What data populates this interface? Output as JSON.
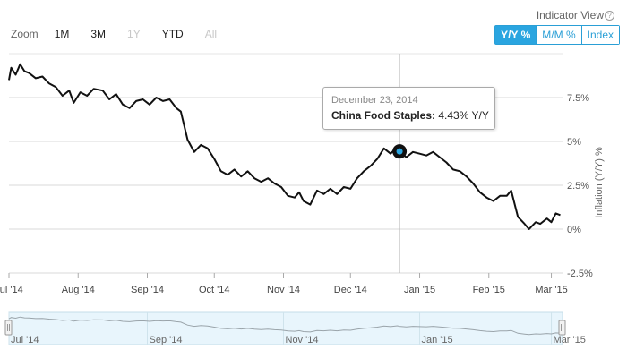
{
  "zoom": {
    "label": "Zoom",
    "buttons": [
      {
        "label": "1M",
        "enabled": true
      },
      {
        "label": "3M",
        "enabled": true
      },
      {
        "label": "1Y",
        "enabled": false
      },
      {
        "label": "YTD",
        "enabled": true
      },
      {
        "label": "All",
        "enabled": false
      }
    ]
  },
  "indicator": {
    "title": "Indicator View",
    "help_icon": "help-circle-icon",
    "buttons": [
      {
        "label": "Y/Y %",
        "active": true
      },
      {
        "label": "M/M %",
        "active": false
      },
      {
        "label": "Index",
        "active": false
      }
    ]
  },
  "tooltip": {
    "date": "December 23, 2014",
    "series": "China Food Staples:",
    "value": "4.43% Y/Y"
  },
  "colors": {
    "line": "#111111",
    "accent": "#2aa5e0",
    "navigator_fill": "#e6f4fb",
    "grid": "#d8d8d8"
  },
  "chart_data": {
    "type": "line",
    "title": "",
    "ylabel": "Inflation (Y/Y) %",
    "xlabel": "",
    "ylim": [
      -2.5,
      10
    ],
    "yticks": [
      {
        "value": 7.5,
        "label": "7.5%"
      },
      {
        "value": 5,
        "label": "5%"
      },
      {
        "value": 2.5,
        "label": "2.5%"
      },
      {
        "value": 0,
        "label": "0%"
      },
      {
        "value": -2.5,
        "label": "-2.5%"
      }
    ],
    "xlim": [
      "2014-07-01",
      "2015-03-06"
    ],
    "xticks": [
      {
        "date": "2014-07-01",
        "label": "Jul '14"
      },
      {
        "date": "2014-08-01",
        "label": "Aug '14"
      },
      {
        "date": "2014-09-01",
        "label": "Sep '14"
      },
      {
        "date": "2014-10-01",
        "label": "Oct '14"
      },
      {
        "date": "2014-11-01",
        "label": "Nov '14"
      },
      {
        "date": "2014-12-01",
        "label": "Dec '14"
      },
      {
        "date": "2015-01-01",
        "label": "Jan '15"
      },
      {
        "date": "2015-02-01",
        "label": "Feb '15"
      },
      {
        "date": "2015-03-01",
        "label": "Mar '15"
      }
    ],
    "grid": true,
    "series": [
      {
        "name": "China Food Staples",
        "points": [
          [
            "2014-07-01",
            8.5
          ],
          [
            "2014-07-02",
            9.2
          ],
          [
            "2014-07-04",
            8.8
          ],
          [
            "2014-07-06",
            9.4
          ],
          [
            "2014-07-08",
            9.0
          ],
          [
            "2014-07-10",
            8.9
          ],
          [
            "2014-07-13",
            8.6
          ],
          [
            "2014-07-16",
            8.7
          ],
          [
            "2014-07-19",
            8.3
          ],
          [
            "2014-07-22",
            8.1
          ],
          [
            "2014-07-25",
            7.6
          ],
          [
            "2014-07-28",
            7.9
          ],
          [
            "2014-07-30",
            7.2
          ],
          [
            "2014-08-02",
            7.8
          ],
          [
            "2014-08-05",
            7.6
          ],
          [
            "2014-08-08",
            8.0
          ],
          [
            "2014-08-12",
            7.9
          ],
          [
            "2014-08-15",
            7.4
          ],
          [
            "2014-08-18",
            7.7
          ],
          [
            "2014-08-21",
            7.1
          ],
          [
            "2014-08-24",
            6.9
          ],
          [
            "2014-08-27",
            7.3
          ],
          [
            "2014-08-30",
            7.4
          ],
          [
            "2014-09-02",
            7.1
          ],
          [
            "2014-09-05",
            7.5
          ],
          [
            "2014-09-08",
            7.3
          ],
          [
            "2014-09-11",
            7.4
          ],
          [
            "2014-09-14",
            6.9
          ],
          [
            "2014-09-16",
            6.7
          ],
          [
            "2014-09-19",
            5.1
          ],
          [
            "2014-09-22",
            4.4
          ],
          [
            "2014-09-25",
            4.8
          ],
          [
            "2014-09-28",
            4.6
          ],
          [
            "2014-10-01",
            4.0
          ],
          [
            "2014-10-04",
            3.3
          ],
          [
            "2014-10-07",
            3.1
          ],
          [
            "2014-10-10",
            3.4
          ],
          [
            "2014-10-13",
            3.0
          ],
          [
            "2014-10-16",
            3.3
          ],
          [
            "2014-10-19",
            2.9
          ],
          [
            "2014-10-22",
            2.7
          ],
          [
            "2014-10-25",
            2.9
          ],
          [
            "2014-10-28",
            2.6
          ],
          [
            "2014-10-31",
            2.4
          ],
          [
            "2014-11-03",
            1.9
          ],
          [
            "2014-11-06",
            1.8
          ],
          [
            "2014-11-08",
            2.1
          ],
          [
            "2014-11-10",
            1.6
          ],
          [
            "2014-11-13",
            1.4
          ],
          [
            "2014-11-16",
            2.2
          ],
          [
            "2014-11-19",
            2.0
          ],
          [
            "2014-11-22",
            2.3
          ],
          [
            "2014-11-25",
            2.0
          ],
          [
            "2014-11-28",
            2.4
          ],
          [
            "2014-12-01",
            2.3
          ],
          [
            "2014-12-04",
            2.9
          ],
          [
            "2014-12-07",
            3.3
          ],
          [
            "2014-12-10",
            3.6
          ],
          [
            "2014-12-13",
            4.0
          ],
          [
            "2014-12-16",
            4.6
          ],
          [
            "2014-12-19",
            4.3
          ],
          [
            "2014-12-22",
            4.7
          ],
          [
            "2014-12-23",
            4.43
          ],
          [
            "2014-12-26",
            4.1
          ],
          [
            "2014-12-29",
            4.4
          ],
          [
            "2015-01-01",
            4.3
          ],
          [
            "2015-01-04",
            4.2
          ],
          [
            "2015-01-07",
            4.4
          ],
          [
            "2015-01-10",
            4.1
          ],
          [
            "2015-01-13",
            3.8
          ],
          [
            "2015-01-16",
            3.4
          ],
          [
            "2015-01-19",
            3.3
          ],
          [
            "2015-01-22",
            3.0
          ],
          [
            "2015-01-25",
            2.6
          ],
          [
            "2015-01-28",
            2.1
          ],
          [
            "2015-01-31",
            1.8
          ],
          [
            "2015-02-03",
            1.6
          ],
          [
            "2015-02-06",
            1.9
          ],
          [
            "2015-02-09",
            1.9
          ],
          [
            "2015-02-11",
            2.2
          ],
          [
            "2015-02-14",
            0.7
          ],
          [
            "2015-02-17",
            0.3
          ],
          [
            "2015-02-19",
            0.0
          ],
          [
            "2015-02-22",
            0.4
          ],
          [
            "2015-02-24",
            0.3
          ],
          [
            "2015-02-27",
            0.6
          ],
          [
            "2015-03-01",
            0.4
          ],
          [
            "2015-03-03",
            0.9
          ],
          [
            "2015-03-05",
            0.8
          ]
        ]
      }
    ],
    "highlight": {
      "date": "2014-12-23",
      "value": 4.43
    },
    "navigator": {
      "labels": [
        {
          "date": "2014-07-01",
          "label": "Jul '14"
        },
        {
          "date": "2014-09-01",
          "label": "Sep '14"
        },
        {
          "date": "2014-11-01",
          "label": "Nov '14"
        },
        {
          "date": "2015-01-01",
          "label": "Jan '15"
        },
        {
          "date": "2015-03-01",
          "label": "Mar '15"
        }
      ]
    }
  }
}
